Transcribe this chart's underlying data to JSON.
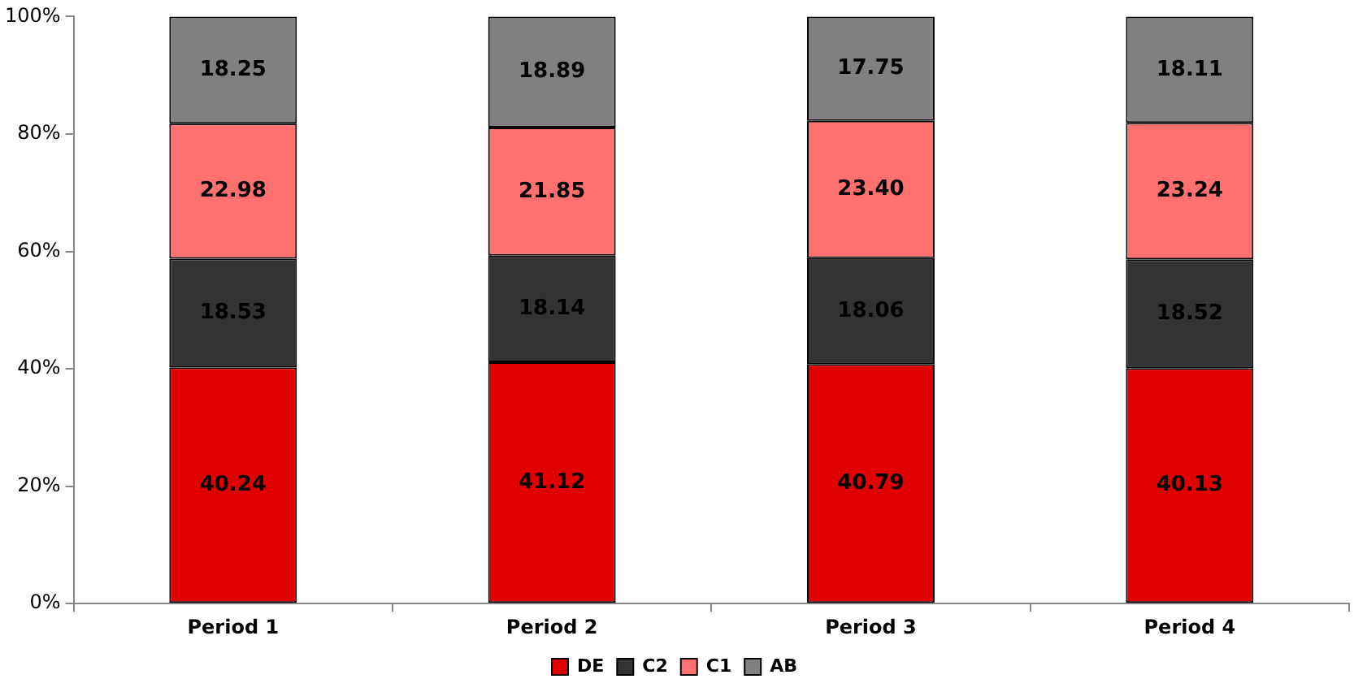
{
  "chart_data": {
    "type": "bar",
    "stacked": true,
    "categories": [
      "Period 1",
      "Period 2",
      "Period 3",
      "Period 4"
    ],
    "series": [
      {
        "name": "DE",
        "color": "#e00000",
        "values": [
          40.24,
          41.12,
          40.79,
          40.13
        ],
        "value_labels": [
          "40.24",
          "41.12",
          "40.79",
          "40.13"
        ]
      },
      {
        "name": "C2",
        "color": "#333333",
        "values": [
          18.53,
          18.14,
          18.06,
          18.52
        ],
        "value_labels": [
          "18.53",
          "18.14",
          "18.06",
          "18.52"
        ]
      },
      {
        "name": "C1",
        "color": "#ff7070",
        "values": [
          22.98,
          21.85,
          23.4,
          23.24
        ],
        "value_labels": [
          "22.98",
          "21.85",
          "23.40",
          "23.24"
        ]
      },
      {
        "name": "AB",
        "color": "#808080",
        "values": [
          18.25,
          18.89,
          17.75,
          18.11
        ],
        "value_labels": [
          "18.25",
          "18.89",
          "17.75",
          "18.11"
        ]
      }
    ],
    "ylim": [
      0,
      100
    ],
    "yticks": [
      {
        "value": 0,
        "label": "0%"
      },
      {
        "value": 20,
        "label": "20%"
      },
      {
        "value": 40,
        "label": "40%"
      },
      {
        "value": 60,
        "label": "60%"
      },
      {
        "value": 80,
        "label": "80%"
      },
      {
        "value": 100,
        "label": "100%"
      }
    ],
    "grid": false,
    "legend": "bottom"
  }
}
